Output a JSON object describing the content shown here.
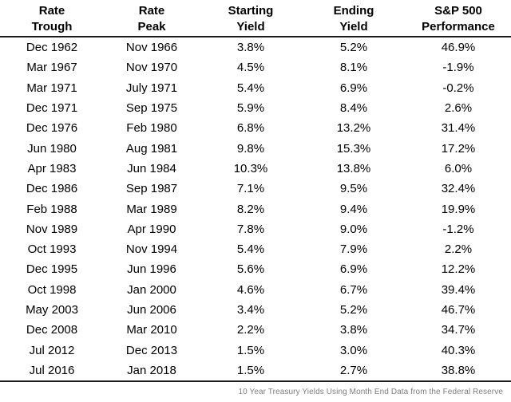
{
  "chart_data": {
    "type": "table",
    "columns": [
      {
        "line1": "Rate",
        "line2": "Trough"
      },
      {
        "line1": "Rate",
        "line2": "Peak"
      },
      {
        "line1": "Starting",
        "line2": "Yield"
      },
      {
        "line1": "Ending",
        "line2": "Yield"
      },
      {
        "line1": "S&P 500",
        "line2": "Performance"
      }
    ],
    "rows": [
      [
        "Dec 1962",
        "Nov 1966",
        "3.8%",
        "5.2%",
        "46.9%"
      ],
      [
        "Mar 1967",
        "Nov 1970",
        "4.5%",
        "8.1%",
        "-1.9%"
      ],
      [
        "Mar 1971",
        "July 1971",
        "5.4%",
        "6.9%",
        "-0.2%"
      ],
      [
        "Dec 1971",
        "Sep 1975",
        "5.9%",
        "8.4%",
        "2.6%"
      ],
      [
        "Dec 1976",
        "Feb 1980",
        "6.8%",
        "13.2%",
        "31.4%"
      ],
      [
        "Jun 1980",
        "Aug 1981",
        "9.8%",
        "15.3%",
        "17.2%"
      ],
      [
        "Apr 1983",
        "Jun 1984",
        "10.3%",
        "13.8%",
        "6.0%"
      ],
      [
        "Dec 1986",
        "Sep 1987",
        "7.1%",
        "9.5%",
        "32.4%"
      ],
      [
        "Feb 1988",
        "Mar 1989",
        "8.2%",
        "9.4%",
        "19.9%"
      ],
      [
        "Nov 1989",
        "Apr 1990",
        "7.8%",
        "9.0%",
        "-1.2%"
      ],
      [
        "Oct 1993",
        "Nov 1994",
        "5.4%",
        "7.9%",
        "2.2%"
      ],
      [
        "Dec 1995",
        "Jun 1996",
        "5.6%",
        "6.9%",
        "12.2%"
      ],
      [
        "Oct 1998",
        "Jan 2000",
        "4.6%",
        "6.7%",
        "39.4%"
      ],
      [
        "May 2003",
        "Jun 2006",
        "3.4%",
        "5.2%",
        "46.7%"
      ],
      [
        "Dec 2008",
        "Mar 2010",
        "2.2%",
        "3.8%",
        "34.7%"
      ],
      [
        "Jul 2012",
        "Dec 2013",
        "1.5%",
        "3.0%",
        "40.3%"
      ],
      [
        "Jul 2016",
        "Jan 2018",
        "1.5%",
        "2.7%",
        "38.8%"
      ]
    ],
    "footnote": "10 Year Treasury Yields Using Month End Data from the Federal Reserve",
    "layout": {
      "grid": false,
      "legend": "none"
    }
  },
  "colors": {
    "background": "#ffffff",
    "text": "#000000",
    "rule": "#1c1c1c",
    "footnote_text": "#7d7d7d"
  }
}
